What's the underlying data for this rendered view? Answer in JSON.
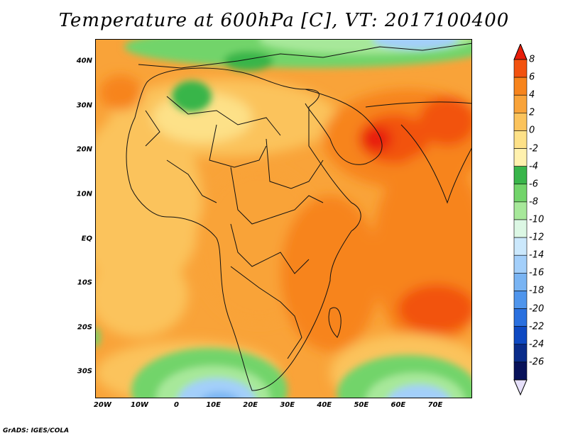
{
  "title": "Temperature at 600hPa [C], VT: 2017100400",
  "credit": "GrADS: IGES/COLA",
  "map": {
    "lat_labels": [
      "40N",
      "30N",
      "20N",
      "10N",
      "EQ",
      "10S",
      "20S",
      "30S"
    ],
    "lat_values": [
      40,
      30,
      20,
      10,
      0,
      -10,
      -20,
      -30
    ],
    "lon_labels": [
      "20W",
      "10W",
      "0",
      "10E",
      "20E",
      "30E",
      "40E",
      "50E",
      "60E",
      "70E"
    ],
    "lon_values": [
      -20,
      -10,
      0,
      10,
      20,
      30,
      40,
      50,
      60,
      70
    ],
    "lat_range": [
      -36,
      45
    ],
    "lon_range": [
      -22,
      80
    ]
  },
  "colorbar": {
    "labels": [
      "8",
      "6",
      "4",
      "2",
      "0",
      "-2",
      "-4",
      "-6",
      "-8",
      "-10",
      "-12",
      "-14",
      "-16",
      "-18",
      "-20",
      "-22",
      "-24",
      "-26"
    ],
    "colors": [
      "#e81e0a",
      "#f2520f",
      "#f7841c",
      "#f9a339",
      "#fbc35c",
      "#fde188",
      "#fff1ae",
      "#39b54a",
      "#72d46a",
      "#a7e89a",
      "#dcf7e4",
      "#cbe8fc",
      "#a3cffa",
      "#79b4f3",
      "#4f95ec",
      "#2a70df",
      "#0e49c2",
      "#0a2c8a",
      "#08125a",
      "#e6e0fa"
    ]
  }
}
